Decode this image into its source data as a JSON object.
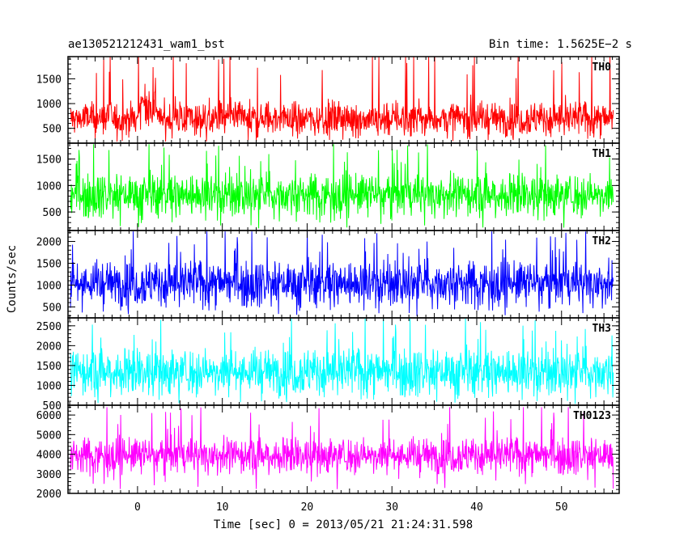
{
  "chart_data": {
    "type": "line",
    "title_left": "ae130521212431_wam1_bst",
    "title_right": "Bin time: 1.5625E−2 s",
    "xlabel": "Time [sec] 0 = 2013/05/21 21:24:31.598",
    "ylabel": "Counts/sec",
    "xlim": [
      -8.2,
      56.8
    ],
    "data_xrange": [
      -7.9,
      56.1
    ],
    "xticks": [
      0,
      10,
      20,
      30,
      40,
      50
    ],
    "xtick_labels": [
      "0",
      "10",
      "20",
      "30",
      "40",
      "50"
    ],
    "grid": false,
    "series": [
      {
        "name": "TH0",
        "color": "#ff0000",
        "ylim": [
          200,
          1950
        ],
        "yticks": [
          500,
          1000,
          1500
        ],
        "ytick_labels": [
          "500",
          "1000",
          "1500"
        ],
        "mean": 700,
        "spread": 280,
        "min": 230,
        "max": 1950
      },
      {
        "name": "TH1",
        "color": "#00ff00",
        "ylim": [
          150,
          1800
        ],
        "yticks": [
          500,
          1000,
          1500
        ],
        "ytick_labels": [
          "500",
          "1000",
          "1500"
        ],
        "mean": 830,
        "spread": 330,
        "min": 180,
        "max": 1780
      },
      {
        "name": "TH2",
        "color": "#0000ff",
        "ylim": [
          250,
          2250
        ],
        "yticks": [
          500,
          1000,
          1500,
          2000
        ],
        "ytick_labels": [
          "500",
          "1000",
          "1500",
          "2000"
        ],
        "mean": 1050,
        "spread": 420,
        "min": 280,
        "max": 2230
      },
      {
        "name": "TH3",
        "color": "#00ffff",
        "ylim": [
          500,
          2700
        ],
        "yticks": [
          500,
          1000,
          1500,
          2000,
          2500
        ],
        "ytick_labels": [
          "500",
          "1000",
          "1500",
          "2000",
          "2500"
        ],
        "mean": 1350,
        "spread": 480,
        "min": 520,
        "max": 2680
      },
      {
        "name": "TH0123",
        "color": "#ff00ff",
        "ylim": [
          2000,
          6500
        ],
        "yticks": [
          2000,
          3000,
          4000,
          5000,
          6000
        ],
        "ytick_labels": [
          "2000",
          "3000",
          "4000",
          "5000",
          "6000"
        ],
        "mean": 3950,
        "spread": 750,
        "min": 2150,
        "max": 6400
      }
    ]
  }
}
